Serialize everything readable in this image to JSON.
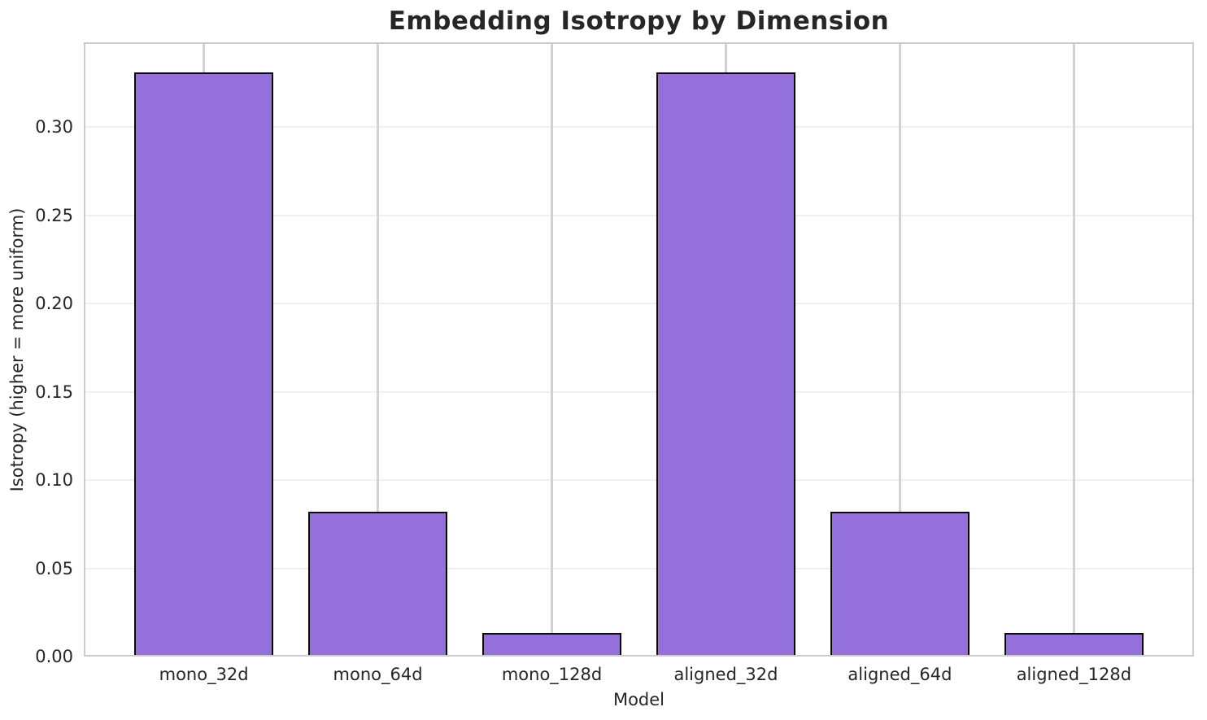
{
  "chart_data": {
    "type": "bar",
    "title": "Embedding Isotropy by Dimension",
    "xlabel": "Model",
    "ylabel": "Isotropy (higher = more uniform)",
    "categories": [
      "mono_32d",
      "mono_64d",
      "mono_128d",
      "aligned_32d",
      "aligned_64d",
      "aligned_128d"
    ],
    "values": [
      0.33,
      0.081,
      0.012,
      0.33,
      0.081,
      0.012
    ],
    "ylim": [
      0,
      0.348
    ],
    "yticks": [
      0.0,
      0.05,
      0.1,
      0.15,
      0.2,
      0.25,
      0.3
    ],
    "ytick_labels": [
      "0.00",
      "0.05",
      "0.10",
      "0.15",
      "0.20",
      "0.25",
      "0.30"
    ],
    "grid": true,
    "legend_position": "none",
    "colors": {
      "bar_fill": "#9370DB",
      "bar_edge": "#0a0a0a",
      "grid_horizontal": "#f0f0f0",
      "grid_vertical": "#d2d2d2",
      "spine": "#cccccc",
      "text": "#262626",
      "background": "#ffffff"
    }
  }
}
